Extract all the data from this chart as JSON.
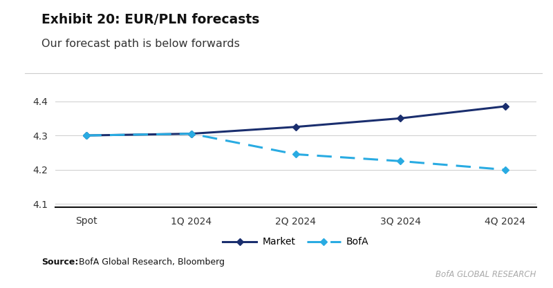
{
  "title": "Exhibit 20: EUR/PLN forecasts",
  "subtitle": "Our forecast path is below forwards",
  "x_labels": [
    "Spot",
    "1Q 2024",
    "2Q 2024",
    "3Q 2024",
    "4Q 2024"
  ],
  "market_values": [
    4.3,
    4.305,
    4.325,
    4.35,
    4.385
  ],
  "bofa_values": [
    4.3,
    4.305,
    4.245,
    4.225,
    4.2
  ],
  "market_color": "#1a2e6e",
  "bofa_color": "#29abe2",
  "ylim": [
    4.09,
    4.46
  ],
  "yticks": [
    4.1,
    4.2,
    4.3,
    4.4
  ],
  "accent_bar_color": "#2060b0",
  "source_bold": "Source:",
  "source_rest": " BofA Global Research, Bloomberg",
  "watermark_text": "BofA GLOBAL RESEARCH",
  "legend_market": "Market",
  "legend_bofa": "BofA",
  "bg_color": "#ffffff",
  "title_fontsize": 13.5,
  "subtitle_fontsize": 11.5
}
